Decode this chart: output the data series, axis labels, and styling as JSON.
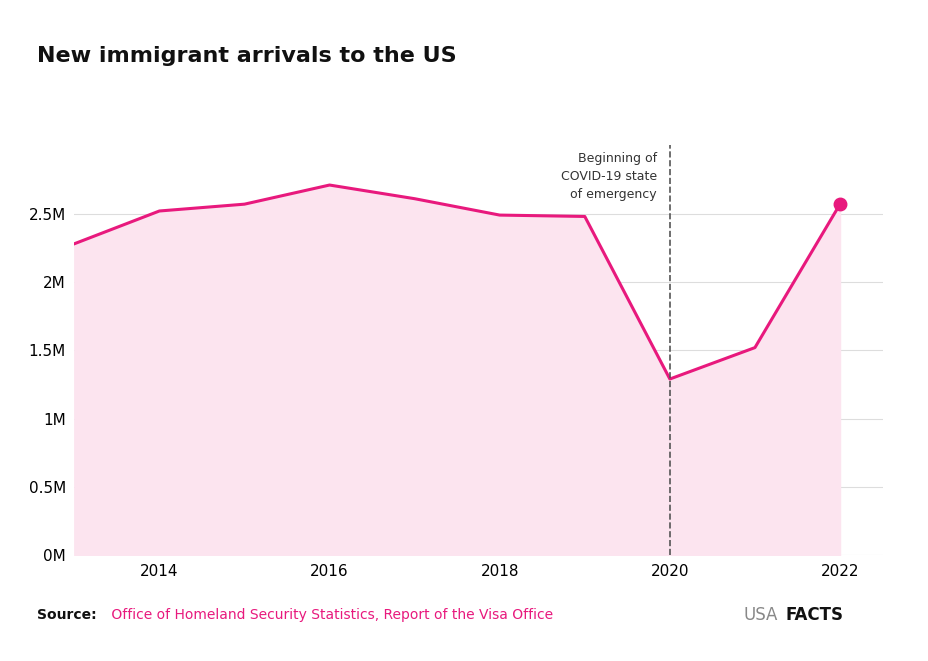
{
  "title": "New immigrant arrivals to the US",
  "years": [
    2013,
    2014,
    2015,
    2016,
    2017,
    2018,
    2019,
    2020,
    2021,
    2022
  ],
  "values": [
    2.28,
    2.52,
    2.57,
    2.71,
    2.61,
    2.49,
    2.48,
    1.29,
    1.52,
    2.57
  ],
  "line_color": "#e8197d",
  "fill_color": "#fce4ef",
  "marker_years": [
    2022
  ],
  "marker_color": "#e8197d",
  "vline_x": 2020,
  "vline_label_line1": "Beginning of",
  "vline_label_line2": "COVID-19 state",
  "vline_label_line3": "of emergency",
  "ylim": [
    0,
    3.0
  ],
  "yticks": [
    0,
    0.5,
    1.0,
    1.5,
    2.0,
    2.5
  ],
  "ytick_labels": [
    "0M",
    "0.5M",
    "1M",
    "1.5M",
    "2M",
    "2.5M"
  ],
  "source_bold": "Source:",
  "source_text": " Office of Homeland Security Statistics, Report of the Visa Office",
  "logo_usa": "USA",
  "logo_facts": "FACTS",
  "background_color": "#ffffff",
  "grid_color": "#dddddd",
  "title_fontsize": 16,
  "axis_fontsize": 11,
  "source_fontsize": 10
}
